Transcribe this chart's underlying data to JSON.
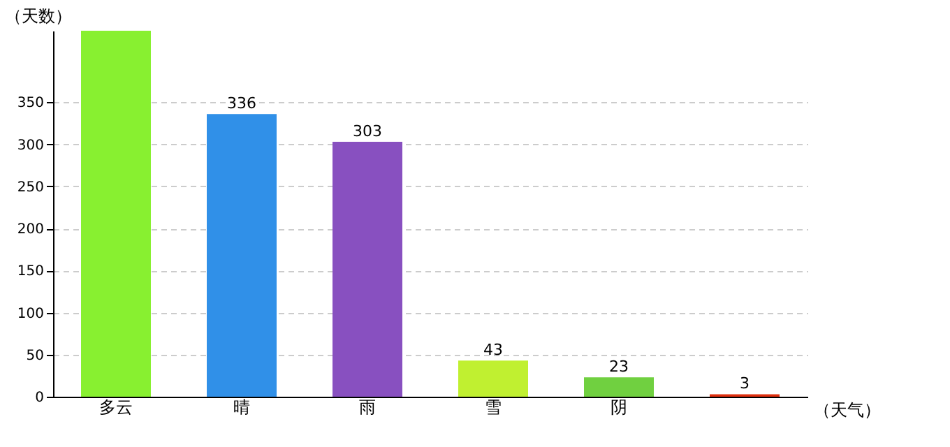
{
  "chart_data": {
    "type": "bar",
    "xlabel": "（天气）",
    "ylabel": "（天数）",
    "categories": [
      "多云",
      "晴",
      "雨",
      "雪",
      "阴",
      null
    ],
    "values": [
      435,
      336,
      303,
      43,
      23,
      3
    ],
    "value_labels": [
      null,
      "336",
      "303",
      "43",
      "23",
      "3"
    ],
    "colors": [
      "#88f030",
      "#3090e8",
      "#8850c0",
      "#c0f030",
      "#70d040",
      "#e03010"
    ],
    "ylim": [
      0,
      435
    ],
    "yticks": [
      0,
      50,
      100,
      150,
      200,
      250,
      300,
      350
    ],
    "grid": "y"
  }
}
